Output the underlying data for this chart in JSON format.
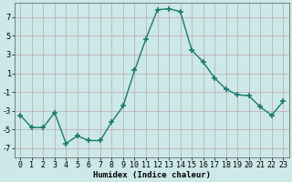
{
  "x": [
    0,
    1,
    2,
    3,
    4,
    5,
    6,
    7,
    8,
    9,
    10,
    11,
    12,
    13,
    14,
    15,
    16,
    17,
    18,
    19,
    20,
    21,
    22,
    23
  ],
  "y": [
    -3.5,
    -4.8,
    -4.8,
    -3.2,
    -6.5,
    -5.7,
    -6.2,
    -6.2,
    -4.2,
    -2.5,
    1.3,
    4.7,
    7.8,
    7.9,
    7.6,
    3.5,
    2.2,
    0.5,
    -0.7,
    -1.3,
    -1.4,
    -2.6,
    -3.5,
    -2.0
  ],
  "line_color": "#1a7a6e",
  "marker": "+",
  "marker_size": 4,
  "marker_lw": 1.2,
  "bg_color": "#cce8e8",
  "grid_color": "#b8a8a8",
  "xlabel": "Humidex (Indice chaleur)",
  "ylim": [
    -8,
    8.5
  ],
  "xlim": [
    -0.5,
    23.5
  ],
  "yticks": [
    -7,
    -5,
    -3,
    -1,
    1,
    3,
    5,
    7
  ],
  "xticks": [
    0,
    1,
    2,
    3,
    4,
    5,
    6,
    7,
    8,
    9,
    10,
    11,
    12,
    13,
    14,
    15,
    16,
    17,
    18,
    19,
    20,
    21,
    22,
    23
  ],
  "xlabel_fontsize": 6.5,
  "tick_fontsize": 6.0,
  "line_width": 1.0
}
